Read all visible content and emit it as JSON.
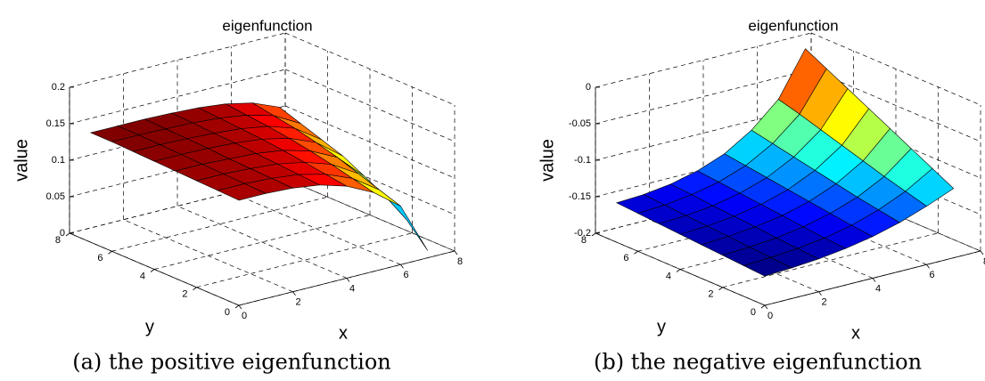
{
  "chart_data": [
    {
      "type": "surface",
      "title": "eigenfunction",
      "xlabel": "x",
      "ylabel": "y",
      "zlabel": "value",
      "caption": "(a) the positive eigenfunction",
      "colormap": "jet",
      "grid": true,
      "xlim": [
        0,
        8
      ],
      "ylim": [
        0,
        8
      ],
      "zlim": [
        0,
        0.2
      ],
      "xticks": [
        0,
        2,
        4,
        6,
        8
      ],
      "yticks": [
        0,
        2,
        4,
        6,
        8
      ],
      "zticks": [
        0,
        0.05,
        0.1,
        0.15,
        0.2
      ],
      "x": [
        0,
        1,
        2,
        3,
        4,
        5,
        6,
        7
      ],
      "y": [
        0,
        1,
        2,
        3,
        4,
        5,
        6,
        7
      ],
      "z": [
        [
          0.144,
          0.144,
          0.142,
          0.137,
          0.126,
          0.108,
          0.08,
          0.01
        ],
        [
          0.145,
          0.145,
          0.143,
          0.139,
          0.13,
          0.115,
          0.09,
          0.04
        ],
        [
          0.146,
          0.146,
          0.144,
          0.141,
          0.134,
          0.122,
          0.1,
          0.06
        ],
        [
          0.147,
          0.147,
          0.145,
          0.143,
          0.138,
          0.128,
          0.11,
          0.075
        ],
        [
          0.148,
          0.148,
          0.147,
          0.145,
          0.141,
          0.133,
          0.118,
          0.09
        ],
        [
          0.149,
          0.149,
          0.148,
          0.146,
          0.143,
          0.137,
          0.125,
          0.1
        ],
        [
          0.15,
          0.15,
          0.149,
          0.148,
          0.145,
          0.14,
          0.13,
          0.11
        ],
        [
          0.15,
          0.15,
          0.15,
          0.149,
          0.147,
          0.143,
          0.135,
          0.12
        ]
      ]
    },
    {
      "type": "surface",
      "title": "eigenfunction",
      "xlabel": "x",
      "ylabel": "y",
      "zlabel": "value",
      "caption": "(b) the negative eigenfunction",
      "colormap": "jet",
      "grid": true,
      "xlim": [
        0,
        8
      ],
      "ylim": [
        0,
        8
      ],
      "zlim": [
        -0.2,
        0
      ],
      "xticks": [
        0,
        2,
        4,
        6,
        8
      ],
      "yticks": [
        0,
        2,
        4,
        6,
        8
      ],
      "zticks": [
        -0.2,
        -0.15,
        -0.1,
        -0.05,
        0
      ],
      "x": [
        0,
        1,
        2,
        3,
        4,
        5,
        6,
        7
      ],
      "y": [
        0,
        1,
        2,
        3,
        4,
        5,
        6,
        7
      ],
      "z": [
        [
          -0.16,
          -0.158,
          -0.155,
          -0.15,
          -0.143,
          -0.133,
          -0.12,
          -0.105
        ],
        [
          -0.158,
          -0.156,
          -0.153,
          -0.148,
          -0.14,
          -0.128,
          -0.112,
          -0.09
        ],
        [
          -0.156,
          -0.154,
          -0.151,
          -0.145,
          -0.136,
          -0.123,
          -0.104,
          -0.075
        ],
        [
          -0.154,
          -0.152,
          -0.148,
          -0.142,
          -0.132,
          -0.117,
          -0.095,
          -0.06
        ],
        [
          -0.152,
          -0.15,
          -0.146,
          -0.139,
          -0.128,
          -0.111,
          -0.086,
          -0.045
        ],
        [
          -0.15,
          -0.148,
          -0.144,
          -0.136,
          -0.124,
          -0.105,
          -0.077,
          -0.03
        ],
        [
          -0.148,
          -0.146,
          -0.141,
          -0.133,
          -0.12,
          -0.099,
          -0.068,
          -0.015
        ],
        [
          -0.146,
          -0.144,
          -0.139,
          -0.13,
          -0.116,
          -0.093,
          -0.06,
          0
        ]
      ]
    }
  ]
}
